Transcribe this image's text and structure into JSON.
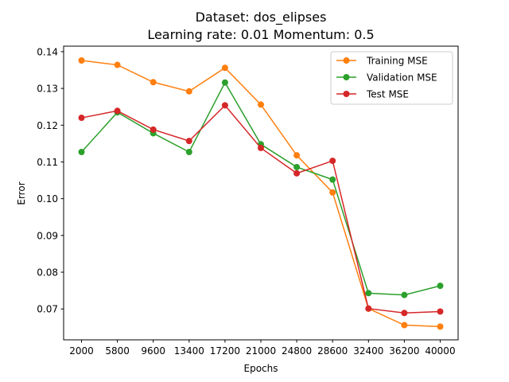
{
  "chart_data": {
    "type": "line",
    "title_lines": [
      "Dataset: dos_elipses",
      "Learning rate: 0.01  Momentum: 0.5"
    ],
    "xlabel": "Epochs",
    "ylabel": "Error",
    "categories": [
      "2000",
      "5800",
      "9600",
      "13400",
      "17200",
      "21000",
      "24800",
      "28600",
      "32400",
      "36200",
      "40000"
    ],
    "ylim": [
      0.0616,
      0.1415
    ],
    "yticks": [
      "0.07",
      "0.08",
      "0.09",
      "0.10",
      "0.11",
      "0.12",
      "0.13",
      "0.14"
    ],
    "grid": false,
    "legend_position": "top-right",
    "series": [
      {
        "name": "Training MSE",
        "color": "#ff7f0e",
        "values": [
          0.1376,
          0.1364,
          0.1317,
          0.1292,
          0.1356,
          0.1256,
          0.1118,
          0.1017,
          0.0701,
          0.0656,
          0.0652
        ]
      },
      {
        "name": "Validation MSE",
        "color": "#2ca02c",
        "values": [
          0.1127,
          0.1235,
          0.1178,
          0.1127,
          0.1316,
          0.1148,
          0.1086,
          0.1052,
          0.0743,
          0.0738,
          0.0763
        ]
      },
      {
        "name": "Test MSE",
        "color": "#d62728",
        "values": [
          0.122,
          0.1239,
          0.1188,
          0.1157,
          0.1254,
          0.1138,
          0.1069,
          0.1103,
          0.0701,
          0.0689,
          0.0693
        ]
      }
    ]
  }
}
